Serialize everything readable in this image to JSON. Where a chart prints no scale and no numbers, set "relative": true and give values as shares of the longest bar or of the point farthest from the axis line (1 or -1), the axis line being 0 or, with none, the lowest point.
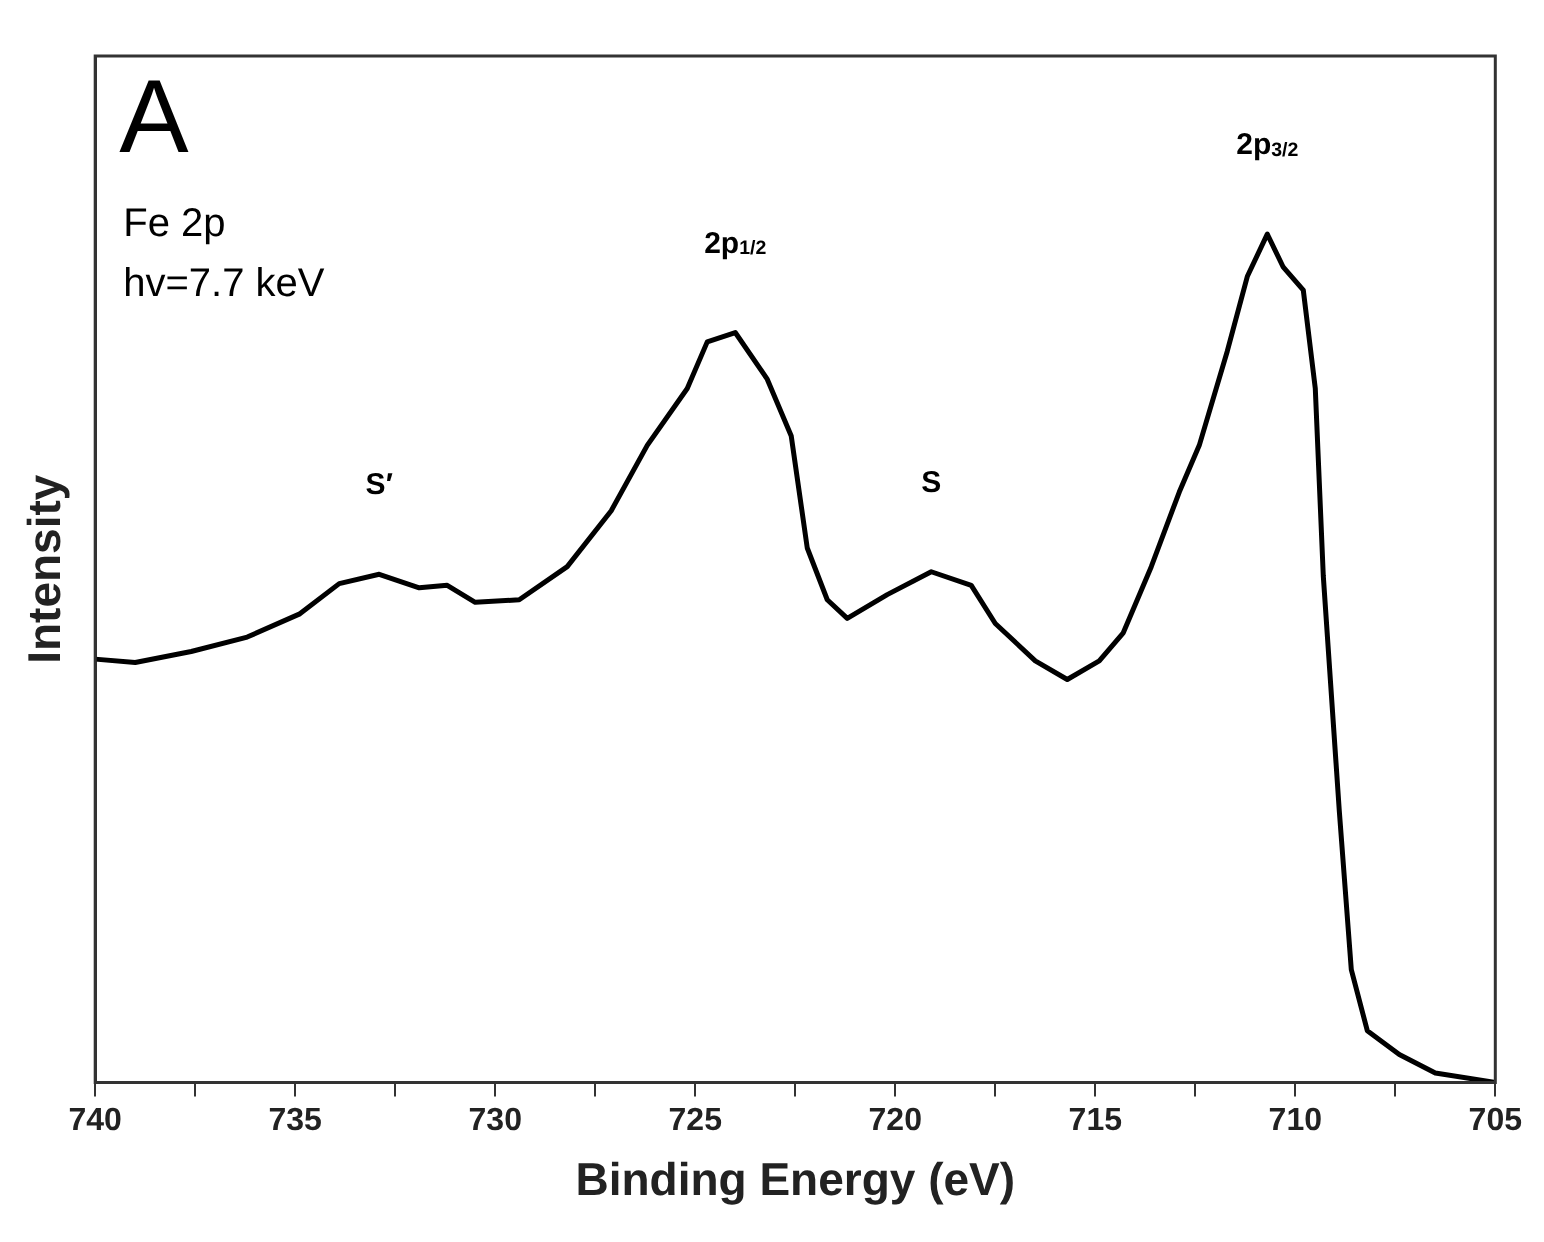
{
  "chart_data": {
    "type": "line",
    "xlabel": "Binding Energy (eV)",
    "ylabel": "Intensity",
    "relative": true,
    "color": "#000000",
    "marker": "none",
    "line_style": "solid",
    "grid": false,
    "legend": false,
    "x": [
      740,
      739,
      737.6,
      736.2,
      734.9,
      733.9,
      732.9,
      731.9,
      731.2,
      730.5,
      729.4,
      728.2,
      727.1,
      726.2,
      725.2,
      724.7,
      724.0,
      723.2,
      722.6,
      722.2,
      721.7,
      721.2,
      720.2,
      719.1,
      718.1,
      717.5,
      716.5,
      715.7,
      714.9,
      714.3,
      713.6,
      712.9,
      712.4,
      711.7,
      711.2,
      710.7,
      710.3,
      709.8,
      709.5,
      709.3,
      708.9,
      708.6,
      708.2,
      707.4,
      706.5,
      705
    ],
    "values": [
      0.499,
      0.495,
      0.508,
      0.525,
      0.552,
      0.588,
      0.599,
      0.583,
      0.586,
      0.566,
      0.569,
      0.608,
      0.674,
      0.751,
      0.818,
      0.873,
      0.884,
      0.829,
      0.762,
      0.63,
      0.569,
      0.547,
      0.575,
      0.602,
      0.586,
      0.541,
      0.497,
      0.475,
      0.497,
      0.53,
      0.608,
      0.696,
      0.751,
      0.862,
      0.95,
      1.0,
      0.961,
      0.934,
      0.818,
      0.597,
      0.32,
      0.133,
      0.061,
      0.033,
      0.011,
      0
    ],
    "xlim": [
      740,
      705
    ],
    "xticks": [
      740,
      {
        "value": 737.5,
        "label": null
      },
      735,
      {
        "value": 732.5,
        "label": null
      },
      730,
      {
        "value": 727.5,
        "label": null
      },
      725,
      {
        "value": 722.5,
        "label": null
      },
      720,
      {
        "value": 717.5,
        "label": null
      },
      715,
      {
        "value": 712.5,
        "label": null
      },
      710,
      {
        "value": 707.5,
        "label": null
      },
      705
    ],
    "annotations": [
      "A",
      "Fe 2p",
      "hv=7.7 keV",
      {
        "text": "S′",
        "x": 732.9,
        "y": 0.599
      },
      {
        "text": "2p$_{1/2}$",
        "x": 724.0,
        "y": 0.884
      },
      {
        "text": "S",
        "x": 719.1,
        "y": 0.602
      },
      {
        "text": "2p$_{3/2}$",
        "x": 710.7,
        "y": 1.0
      }
    ]
  }
}
